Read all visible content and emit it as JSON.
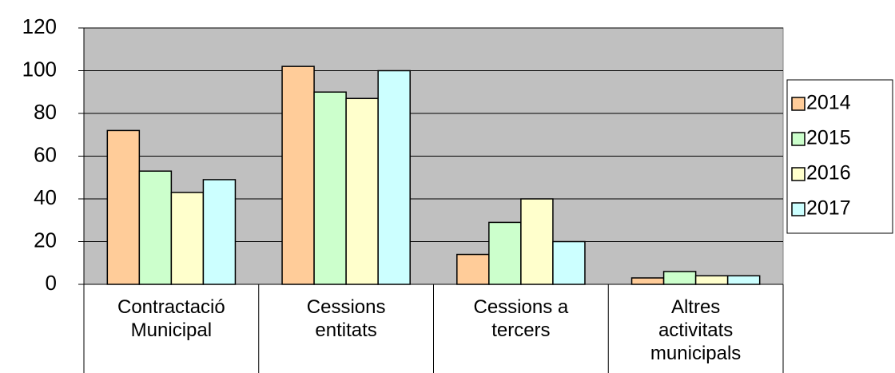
{
  "chart_data": {
    "type": "bar",
    "categories": [
      "Contractació\nMunicipal",
      "Cessions\nentitats",
      "Cessions a\ntercers",
      "Altres\nactivitats\nmunicipals"
    ],
    "series": [
      {
        "name": "2014",
        "color": "#ffcc99",
        "values": [
          72,
          102,
          14,
          3
        ]
      },
      {
        "name": "2015",
        "color": "#ccffcc",
        "values": [
          53,
          90,
          29,
          6
        ]
      },
      {
        "name": "2016",
        "color": "#ffffcc",
        "values": [
          43,
          87,
          40,
          4
        ]
      },
      {
        "name": "2017",
        "color": "#ccffff",
        "values": [
          49,
          100,
          20,
          4
        ]
      }
    ],
    "ylim": [
      0,
      120
    ],
    "yticks": [
      0,
      20,
      40,
      60,
      80,
      100,
      120
    ],
    "grid": true,
    "legend": "right"
  }
}
